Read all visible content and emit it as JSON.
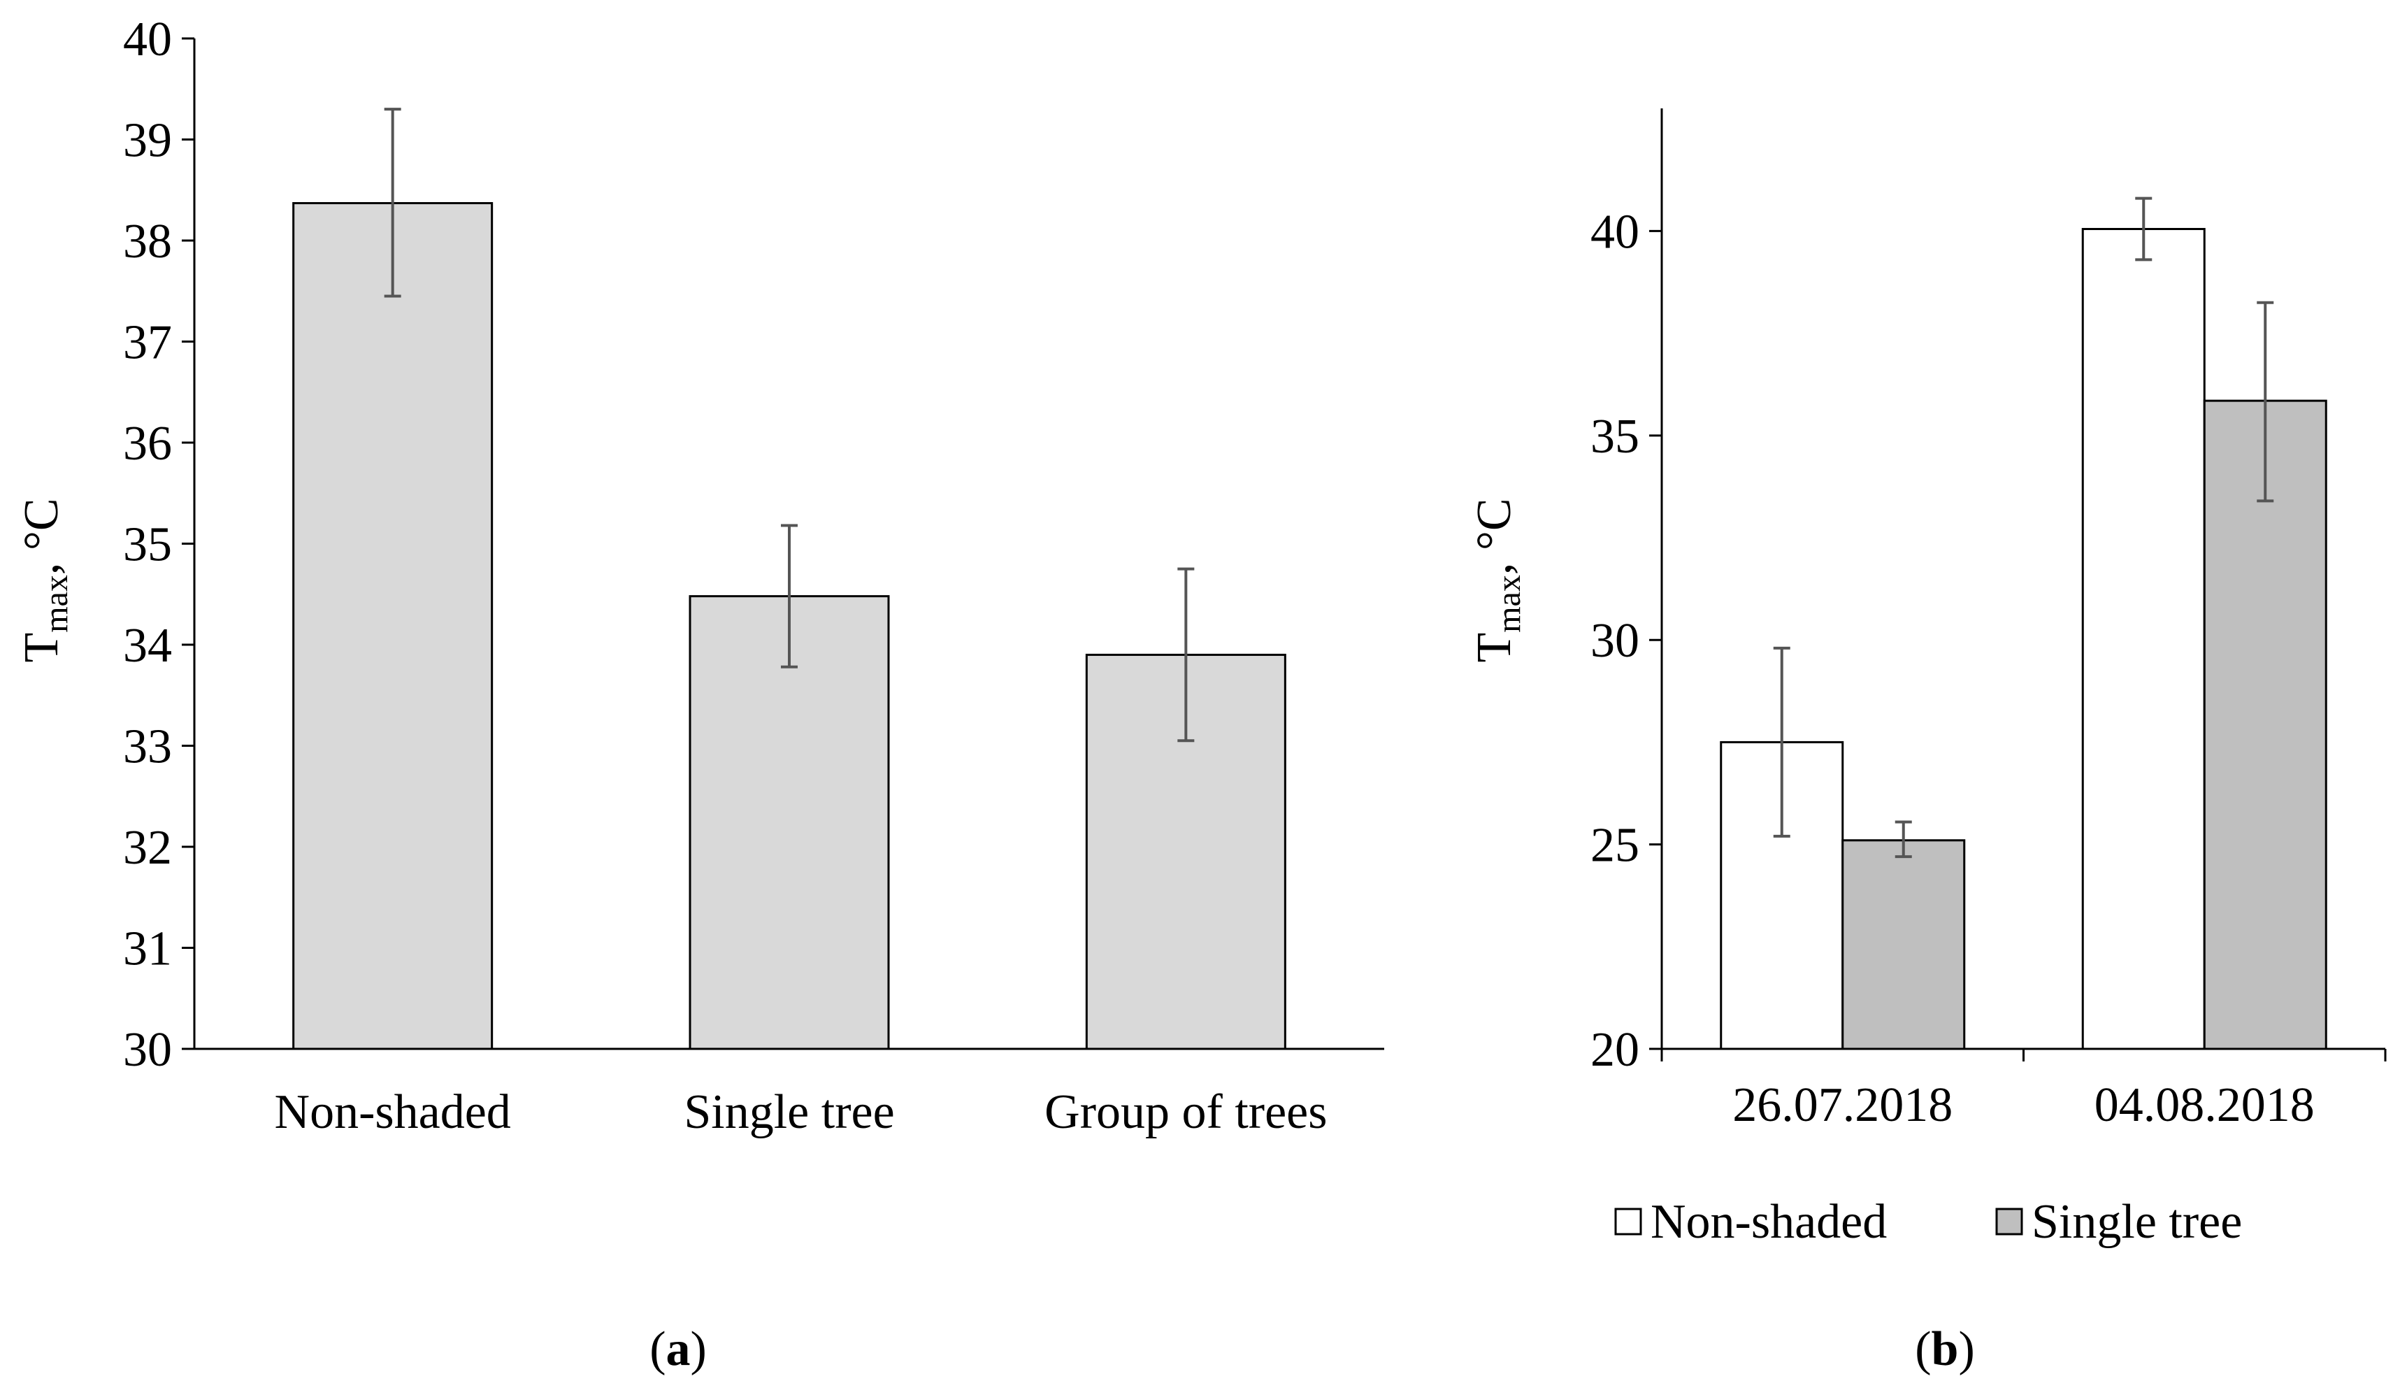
{
  "chart_data": [
    {
      "id": "a",
      "type": "bar",
      "panel_label": "a",
      "categories": [
        "Non-shaded",
        "Single tree",
        "Group of trees"
      ],
      "series": [
        {
          "name": "Tmax",
          "values": [
            38.37,
            34.48,
            33.9
          ],
          "error_low": [
            37.45,
            33.78,
            33.05
          ],
          "error_high": [
            39.3,
            35.18,
            34.75
          ],
          "color": "#d9d9d9"
        }
      ],
      "ylabel_main": "T",
      "ylabel_sub": "max",
      "ylabel_tail": ", °C",
      "ylim": [
        30,
        40
      ],
      "yticks": [
        "30",
        "31",
        "32",
        "33",
        "34",
        "35",
        "36",
        "37",
        "38",
        "39",
        "40"
      ],
      "grid": false,
      "legend": "none"
    },
    {
      "id": "b",
      "type": "bar",
      "panel_label": "b",
      "categories": [
        "26.07.2018",
        "04.08.2018"
      ],
      "series": [
        {
          "name": "Non-shaded",
          "values": [
            27.5,
            40.05
          ],
          "error_low": [
            25.2,
            39.3
          ],
          "error_high": [
            29.8,
            40.8
          ],
          "color": "#ffffff"
        },
        {
          "name": "Single tree",
          "values": [
            25.1,
            35.85
          ],
          "error_low": [
            24.7,
            33.4
          ],
          "error_high": [
            25.55,
            38.25
          ],
          "color": "#bfbfbf"
        }
      ],
      "ylabel_main": "T",
      "ylabel_sub": "max",
      "ylabel_tail": ", °C",
      "ylim": [
        20,
        43
      ],
      "yticks": [
        "20",
        "25",
        "30",
        "35",
        "40"
      ],
      "grid": false,
      "legend": "bottom"
    }
  ]
}
